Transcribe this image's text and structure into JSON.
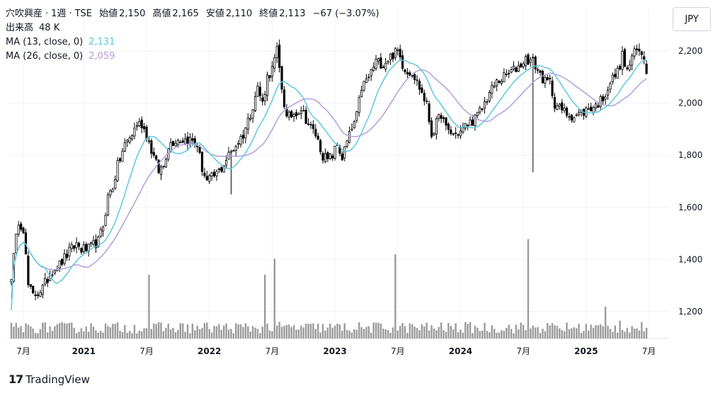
{
  "header": {
    "name": "穴吹興産",
    "interval": "1週",
    "exchange": "TSE",
    "open_label": "始値",
    "open": "2,150",
    "high_label": "高値",
    "high": "2,165",
    "low_label": "安値",
    "low": "2,110",
    "close_label": "終値",
    "close": "2,113",
    "change": "−67 (−3.07%)",
    "volume_label": "出来高",
    "volume": "48 K",
    "ma13_label": "MA (13, close, 0)",
    "ma13_value": "2,131",
    "ma26_label": "MA (26, close, 0)",
    "ma26_value": "2,059"
  },
  "currency": "JPY",
  "brand": {
    "logo": "17",
    "name": "TradingView"
  },
  "colors": {
    "up": "#ffffff",
    "down": "#000000",
    "outline": "#000000",
    "ma13": "#5ec7e0",
    "ma26": "#b39ddb",
    "volume": "#888888",
    "grid": "#f0f3fa",
    "axis_text": "#131722"
  },
  "chart_data": {
    "type": "candlestick",
    "title": "穴吹興産 · 1週 · TSE",
    "ylim": [
      1100,
      2300
    ],
    "yticks": [
      1200,
      1400,
      1600,
      1800,
      2000,
      2200
    ],
    "ytick_labels": [
      "1,200",
      "1,400",
      "1,600",
      "1,800",
      "2,000",
      "2,200"
    ],
    "xticks": [
      {
        "label": "7月",
        "week": 5
      },
      {
        "label": "2021",
        "week": 30
      },
      {
        "label": "7月",
        "week": 56
      },
      {
        "label": "2022",
        "week": 82
      },
      {
        "label": "7月",
        "week": 108
      },
      {
        "label": "2023",
        "week": 134
      },
      {
        "label": "7月",
        "week": 160
      },
      {
        "label": "2024",
        "week": 186
      },
      {
        "label": "7月",
        "week": 212
      },
      {
        "label": "2025",
        "week": 238
      },
      {
        "label": "7月",
        "week": 264
      }
    ],
    "total_weeks": 270,
    "anchors": [
      [
        0,
        1340
      ],
      [
        3,
        1550
      ],
      [
        5,
        1520
      ],
      [
        7,
        1300
      ],
      [
        9,
        1260
      ],
      [
        13,
        1290
      ],
      [
        17,
        1360
      ],
      [
        20,
        1380
      ],
      [
        24,
        1430
      ],
      [
        27,
        1460
      ],
      [
        29,
        1440
      ],
      [
        32,
        1440
      ],
      [
        36,
        1470
      ],
      [
        38,
        1530
      ],
      [
        40,
        1640
      ],
      [
        42,
        1680
      ],
      [
        44,
        1760
      ],
      [
        47,
        1840
      ],
      [
        50,
        1880
      ],
      [
        52,
        1920
      ],
      [
        54,
        1920
      ],
      [
        56,
        1880
      ],
      [
        58,
        1820
      ],
      [
        61,
        1740
      ],
      [
        63,
        1760
      ],
      [
        65,
        1840
      ],
      [
        68,
        1860
      ],
      [
        71,
        1860
      ],
      [
        74,
        1860
      ],
      [
        77,
        1840
      ],
      [
        79,
        1750
      ],
      [
        81,
        1700
      ],
      [
        84,
        1720
      ],
      [
        87,
        1750
      ],
      [
        90,
        1800
      ],
      [
        93,
        1840
      ],
      [
        96,
        1880
      ],
      [
        99,
        1960
      ],
      [
        102,
        2060
      ],
      [
        104,
        2000
      ],
      [
        106,
        2100
      ],
      [
        108,
        2130
      ],
      [
        110,
        2200
      ],
      [
        112,
        2060
      ],
      [
        114,
        1940
      ],
      [
        117,
        1960
      ],
      [
        120,
        1980
      ],
      [
        123,
        1920
      ],
      [
        126,
        1880
      ],
      [
        129,
        1800
      ],
      [
        131,
        1780
      ],
      [
        133,
        1800
      ],
      [
        135,
        1840
      ],
      [
        137,
        1790
      ],
      [
        139,
        1850
      ],
      [
        141,
        1900
      ],
      [
        143,
        1950
      ],
      [
        145,
        2060
      ],
      [
        148,
        2100
      ],
      [
        151,
        2160
      ],
      [
        154,
        2150
      ],
      [
        157,
        2180
      ],
      [
        160,
        2200
      ],
      [
        162,
        2150
      ],
      [
        164,
        2120
      ],
      [
        166,
        2120
      ],
      [
        168,
        2080
      ],
      [
        170,
        2040
      ],
      [
        172,
        1990
      ],
      [
        174,
        1880
      ],
      [
        176,
        1920
      ],
      [
        178,
        1960
      ],
      [
        180,
        1900
      ],
      [
        183,
        1880
      ],
      [
        186,
        1890
      ],
      [
        189,
        1920
      ],
      [
        192,
        1940
      ],
      [
        195,
        1980
      ],
      [
        198,
        2040
      ],
      [
        201,
        2080
      ],
      [
        204,
        2100
      ],
      [
        207,
        2120
      ],
      [
        210,
        2140
      ],
      [
        213,
        2170
      ],
      [
        216,
        2160
      ],
      [
        219,
        2110
      ],
      [
        221,
        2080
      ],
      [
        223,
        2080
      ],
      [
        225,
        2000
      ],
      [
        227,
        1980
      ],
      [
        230,
        1960
      ],
      [
        233,
        1950
      ],
      [
        236,
        1960
      ],
      [
        239,
        1980
      ],
      [
        242,
        1990
      ],
      [
        245,
        2020
      ],
      [
        248,
        2080
      ],
      [
        251,
        2120
      ],
      [
        253,
        2180
      ],
      [
        255,
        2120
      ],
      [
        257,
        2180
      ],
      [
        259,
        2200
      ],
      [
        261,
        2190
      ],
      [
        262,
        2180
      ],
      [
        263,
        2113
      ]
    ],
    "volume_spikes": [
      [
        57,
        1.0
      ],
      [
        105,
        1.0
      ],
      [
        109,
        1.25
      ],
      [
        159,
        1.32
      ],
      [
        214,
        1.56
      ],
      [
        246,
        0.5
      ],
      [
        252,
        0.28
      ]
    ],
    "last": {
      "open": 2150,
      "high": 2165,
      "low": 2110,
      "close": 2113
    },
    "ma_periods": [
      13,
      26
    ],
    "series": [
      {
        "name": "MA (13, close, 0)",
        "last_value": 2131
      },
      {
        "name": "MA (26, close, 0)",
        "last_value": 2059
      }
    ]
  }
}
